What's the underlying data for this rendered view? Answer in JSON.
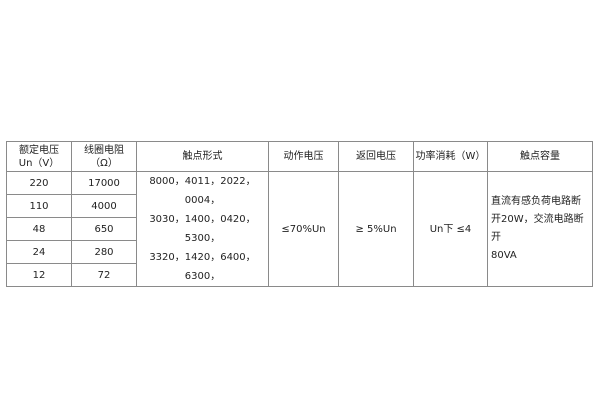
{
  "headers": [
    "额定电压\nUn（V）",
    "线圈电阻\n（Ω）",
    "触点形式",
    "动作电压",
    "返回电压",
    "功率消耗（W）",
    "触点容量"
  ],
  "header_lines": {
    "voltage": [
      "额定电压",
      "Un（V）"
    ],
    "resistance": [
      "线圈电阻",
      "（Ω）"
    ]
  },
  "rows": [
    {
      "voltage": "220",
      "resistance": "17000"
    },
    {
      "voltage": "110",
      "resistance": "4000"
    },
    {
      "voltage": "48",
      "resistance": "650"
    },
    {
      "voltage": "24",
      "resistance": "280"
    },
    {
      "voltage": "12",
      "resistance": "72"
    }
  ],
  "contact_forms": [
    "8000，4011，2022，0004，",
    "3030，1400，0420，5300，",
    "3320，1420，6400，6300，"
  ],
  "operate_voltage": "≤70%Un",
  "release_voltage": "≥ 5%Un",
  "power": "Un下 ≤4",
  "contact_capacity": [
    "直流有感负荷电路断",
    "开20W，交流电路断开",
    "80VA"
  ]
}
